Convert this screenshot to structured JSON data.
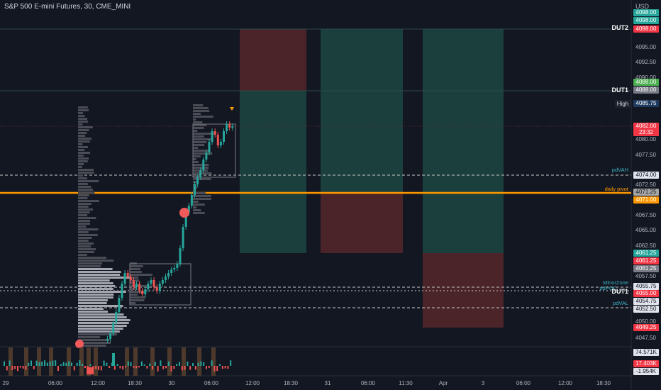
{
  "header": {
    "title": "S&P 500 E-mini Futures, 30, CME_MINI",
    "currency": "USD"
  },
  "price_axis": {
    "ticks": [
      "4095.00",
      "4092.50",
      "4090.00",
      "4085.00",
      "4080.00",
      "4077.50",
      "4072.50",
      "4067.50",
      "4065.00",
      "4062.50",
      "4057.50",
      "4052.50",
      "4050.00",
      "4047.50"
    ]
  },
  "price_tags": [
    {
      "text": "4098.00",
      "color": "#26a69a"
    },
    {
      "text": "4098.00",
      "color": "#26a69a"
    },
    {
      "text": "4098.00",
      "color": "#f23645"
    },
    {
      "text": "4088.00",
      "color": "#4caf50"
    },
    {
      "text": "4088.00",
      "color": "#787b86"
    },
    {
      "text": "4085.75",
      "color": "#1e3a5f"
    },
    {
      "text": "4082.00",
      "color": "#f23645"
    },
    {
      "text": "23:32",
      "color": "#f23645"
    },
    {
      "text": "4074.00",
      "color": "#e0e3eb"
    },
    {
      "text": "4071.25",
      "color": "#a5a5a5"
    },
    {
      "text": "4071.00",
      "color": "#ff9800"
    },
    {
      "text": "4061.25",
      "color": "#26a69a"
    },
    {
      "text": "4061.25",
      "color": "#f23645"
    },
    {
      "text": "4061.25",
      "color": "#787b86"
    },
    {
      "text": "4055.75",
      "color": "#e0e3eb"
    },
    {
      "text": "4055.00",
      "color": "#f23645"
    },
    {
      "text": "4054.75",
      "color": "#e0e3eb"
    },
    {
      "text": "4052.50",
      "color": "#e0e3eb"
    },
    {
      "text": "4049.25",
      "color": "#f23645"
    }
  ],
  "volume_tags": [
    {
      "text": "74.571K",
      "color": "#e0e3eb"
    },
    {
      "text": "17.403K",
      "color": "#f23645"
    },
    {
      "text": "-1.954K",
      "color": "#e0e3eb"
    }
  ],
  "high_label": "High",
  "level_labels": {
    "dut2": "DUT2",
    "dut1_top": "DUT1",
    "pdvah": "pdVAH",
    "daily_pivot": "daily pivot",
    "minor_zone": "MinorZone",
    "pdpoc": "pdPOC",
    "dut1_bottom": "DUT1",
    "pdval": "pdVAL"
  },
  "time_axis": [
    "29",
    "06:00",
    "12:00",
    "18:30",
    "30",
    "06:00",
    "12:00",
    "18:30",
    "31",
    "06:00",
    "11:30",
    "Apr",
    "3",
    "06:00",
    "12:00",
    "18:30"
  ],
  "colors": {
    "background": "#131722",
    "up": "#26a69a",
    "down": "#ef5350",
    "pivot": "#ff9800",
    "zone_green": "#1e4a46",
    "zone_red": "#4a2428"
  }
}
